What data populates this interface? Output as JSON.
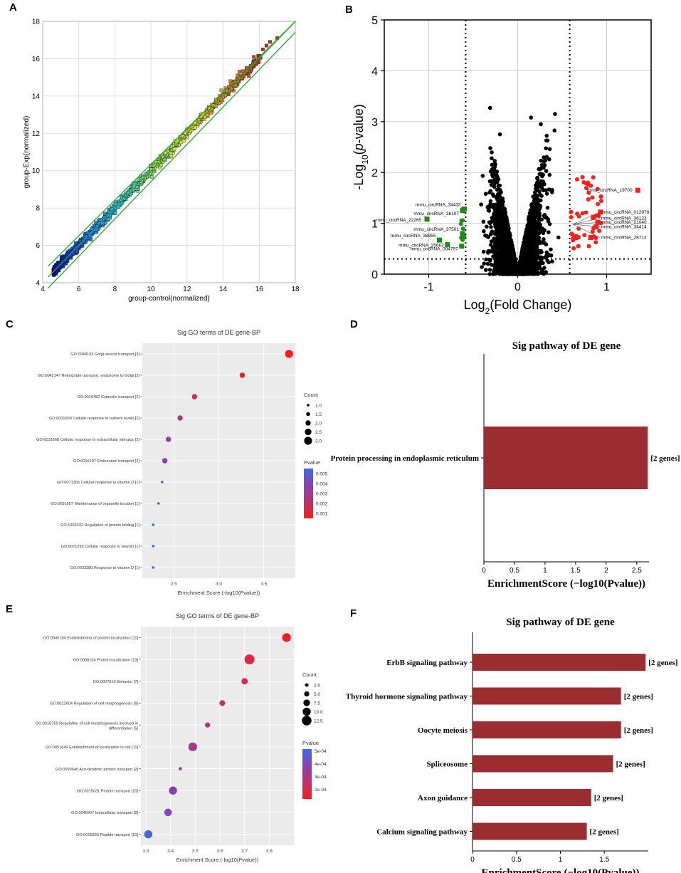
{
  "panels": {
    "A": {
      "letter": "A"
    },
    "B": {
      "letter": "B"
    },
    "C": {
      "letter": "C"
    },
    "D": {
      "letter": "D"
    },
    "E": {
      "letter": "E"
    },
    "F": {
      "letter": "F"
    }
  },
  "chart_data": [
    {
      "id": "A",
      "type": "scatter",
      "title": "",
      "xlabel": "group-control(normalized)",
      "ylabel": "group-Exp(normalized)",
      "xlim": [
        4,
        18
      ],
      "ylim": [
        4,
        18
      ],
      "xticks": [
        "4",
        "6",
        "8",
        "10",
        "12",
        "14",
        "16",
        "18"
      ],
      "yticks": [
        "4",
        "6",
        "8",
        "10",
        "12",
        "14",
        "16",
        "18"
      ],
      "grid": true,
      "reference_lines": [
        {
          "name": "y=x",
          "intercept": 0
        },
        {
          "name": "upper fold-change bound",
          "intercept": 0.585
        },
        {
          "name": "lower fold-change bound",
          "intercept": -0.585
        }
      ],
      "color_scale": [
        "#0000aa",
        "#1e6fff",
        "#2ec7e8",
        "#9be35a",
        "#f5e342",
        "#f08a2a",
        "#d42020"
      ],
      "point_range": {
        "min": 4.5,
        "max": 17.2
      },
      "highlighted_points": [
        {
          "x": 16.6,
          "y": 16.9
        },
        {
          "x": 16.2,
          "y": 16.5
        },
        {
          "x": 15.3,
          "y": 15.5
        },
        {
          "x": 14.9,
          "y": 15.3
        },
        {
          "x": 14.4,
          "y": 14.8
        },
        {
          "x": 13.9,
          "y": 14.3
        },
        {
          "x": 14.2,
          "y": 14.3
        },
        {
          "x": 13.6,
          "y": 13.8
        },
        {
          "x": 14.8,
          "y": 15.1
        },
        {
          "x": 15.7,
          "y": 16.1
        },
        {
          "x": 16.4,
          "y": 16.7
        },
        {
          "x": 17.0,
          "y": 17.1
        }
      ]
    },
    {
      "id": "B",
      "type": "scatter",
      "title": "",
      "xlabel": "Log2(Fold Change)",
      "ylabel": "-Log10(p-value)",
      "xlim": [
        -1.5,
        1.5
      ],
      "ylim": [
        0,
        5
      ],
      "xticks": [
        "-1",
        "0",
        "1"
      ],
      "yticks": [
        "0",
        "1",
        "2",
        "3",
        "4",
        "5"
      ],
      "grid": true,
      "thresholds": {
        "log2fc": [
          -0.585,
          0.585
        ],
        "neglog10p": 0.3
      },
      "series": [
        {
          "name": "not significant",
          "color": "#000000"
        },
        {
          "name": "upregulated",
          "color": "#ff0000"
        },
        {
          "name": "downregulated",
          "color": "#008000"
        }
      ],
      "labeled_points": [
        {
          "label": "mmu_circRNA_19700",
          "x": 1.35,
          "y": 1.65,
          "group": "up"
        },
        {
          "label": "mmu_circRNA_012978",
          "x": 0.93,
          "y": 1.22,
          "group": "up"
        },
        {
          "label": "mmu_circRNA_36123",
          "x": 0.85,
          "y": 1.12,
          "group": "up"
        },
        {
          "label": "mmu_circRNA_21040",
          "x": 0.9,
          "y": 1.02,
          "group": "up"
        },
        {
          "label": "mmu_circRNA_34414",
          "x": 0.88,
          "y": 0.93,
          "group": "up"
        },
        {
          "label": "mmu_circRNA_28712",
          "x": 0.82,
          "y": 0.72,
          "group": "up"
        },
        {
          "label": "mmu_circRNA_34433",
          "x": -0.6,
          "y": 1.28,
          "group": "down"
        },
        {
          "label": "mmu_circRNA_36107",
          "x": -0.62,
          "y": 1.25,
          "group": "down"
        },
        {
          "label": "mmu_circRNA_22265",
          "x": -1.02,
          "y": 1.08,
          "group": "down"
        },
        {
          "label": "mmu_circRNA_37501",
          "x": -0.62,
          "y": 0.8,
          "group": "down"
        },
        {
          "label": "mmu_circRNA_38955",
          "x": -0.88,
          "y": 0.67,
          "group": "down"
        },
        {
          "label": "mmu_circRNA_25663",
          "x": -0.79,
          "y": 0.58,
          "group": "down"
        },
        {
          "label": "mmu_circRNA_004797",
          "x": -0.63,
          "y": 0.55,
          "group": "down"
        }
      ]
    },
    {
      "id": "C",
      "type": "scatter",
      "title": "Sig GO terms of DE gene-BP",
      "xlabel": "Enrichment Score (-log10(Pvalue))",
      "ylabel": "",
      "xlim": [
        2.15,
        3.85
      ],
      "xticks": [
        2.5,
        3.0,
        3.5
      ],
      "categories": [
        "GO:0048193 Golgi vesicle transport [3]",
        "GO:0042147 Retrograde transport, endosome to Golgi [2]",
        "GO:0016482 Cytosolic transport [2]",
        "GO:0031669 Cellular response to nutrient levels [2]",
        "GO:0031668 Cellular response to extracellular stimulus [2]",
        "GO:0016197 Endosomal transport [2]",
        "GO:0071305 Cellular response to vitamin D [1]",
        "GO:0051657 Maintenance of organelle location [1]",
        "GO:1903332 Regulation of protein folding [1]",
        "GO:0071295 Cellular response to vitamin [1]",
        "GO:0033280 Response to vitamin D [1]"
      ],
      "values": [
        3.78,
        3.26,
        2.73,
        2.57,
        2.44,
        2.4,
        2.37,
        2.33,
        2.27,
        2.27,
        2.27
      ],
      "counts": [
        3,
        2,
        2,
        2,
        2,
        2,
        1,
        1,
        1,
        1,
        1
      ],
      "pvalues": [
        0.0002,
        0.0006,
        0.0019,
        0.0027,
        0.0036,
        0.004,
        0.0043,
        0.0047,
        0.0054,
        0.0054,
        0.0054
      ],
      "legend": {
        "size_title": "Count",
        "size_labels": [
          "1.0",
          "1.5",
          "2.0",
          "2.5",
          "3.0"
        ],
        "color_title": "Pvalue",
        "color_labels": [
          "0.005",
          "0.004",
          "0.003",
          "0.002",
          "0.001"
        ],
        "color_range": [
          0.0005,
          0.0055
        ]
      }
    },
    {
      "id": "D",
      "type": "bar",
      "orientation": "horizontal",
      "title": "Sig pathway of DE gene",
      "xlabel": "EnrichmentScore (−log10(Pvalue))",
      "xlim": [
        0,
        2.7
      ],
      "xticks": [
        "0",
        "0.5",
        "1",
        "1.5",
        "2",
        "2.5"
      ],
      "categories": [
        "Protein processing in endoplasmic reticulum"
      ],
      "values": [
        2.68
      ],
      "annotations": [
        "[2 genes]"
      ],
      "color": "#9b2d30"
    },
    {
      "id": "E",
      "type": "scatter",
      "title": "Sig GO terms of DE gene-BP",
      "xlabel": "Enrichment Score (-log10(Pvalue))",
      "ylabel": "",
      "xlim": [
        3.28,
        3.9
      ],
      "xticks": [
        3.3,
        3.4,
        3.5,
        3.6,
        3.7,
        3.8
      ],
      "categories": [
        "GO:0045184 Establishment of protein localization [11]",
        "GO:0008104 Protein localization [13]",
        "GO:0007610 Behavior [7]",
        "GO:0022604 Regulation of cell morphogenesis [6]",
        "GO:0010769 Regulation of cell morphogenesis involved in differentiation [5]",
        "GO:0051649 Establishment of localization in cell [11]",
        "GO:0099640 Axo-dendritic protein transport [2]",
        "GO:0015031 Protein transport [10]",
        "GO:0046907 Intracellular transport [9]",
        "GO:0015833 Peptide transport [10]"
      ],
      "values": [
        3.87,
        3.72,
        3.7,
        3.61,
        3.55,
        3.49,
        3.44,
        3.41,
        3.39,
        3.31
      ],
      "counts": [
        11,
        13,
        7,
        6,
        5,
        11,
        2,
        10,
        9,
        10
      ],
      "pvalues": [
        0.000135,
        0.00019,
        0.0002,
        0.000245,
        0.00028,
        0.00032,
        0.00036,
        0.00039,
        0.00041,
        0.00049
      ],
      "legend": {
        "size_title": "Count",
        "size_labels": [
          "2.5",
          "5.0",
          "7.5",
          "10.0",
          "12.5"
        ],
        "color_title": "Pvalue",
        "color_labels": [
          "5e-04",
          "4e-04",
          "3e-04",
          "2e-04"
        ],
        "color_range": [
          0.000125,
          0.000515
        ]
      }
    },
    {
      "id": "F",
      "type": "bar",
      "orientation": "horizontal",
      "title": "Sig pathway of DE gene",
      "xlabel": "EnrichmentScore (−log10(Pvalue))",
      "xlim": [
        0,
        2.0
      ],
      "xticks": [
        "0",
        "0.5",
        "1",
        "1.5"
      ],
      "categories": [
        "ErbB signaling pathway",
        "Thyroid hormone signaling pathway",
        "Oocyte meiosis",
        "Spliceosome",
        "Axon guidance",
        "Calcium signaling pathway"
      ],
      "values": [
        1.97,
        1.69,
        1.69,
        1.6,
        1.35,
        1.3
      ],
      "annotations": [
        "[2 genes]",
        "[2 genes]",
        "[2 genes]",
        "[2 genes]",
        "[2 genes]",
        "[2 genes]"
      ],
      "color": "#9b2d30"
    }
  ]
}
